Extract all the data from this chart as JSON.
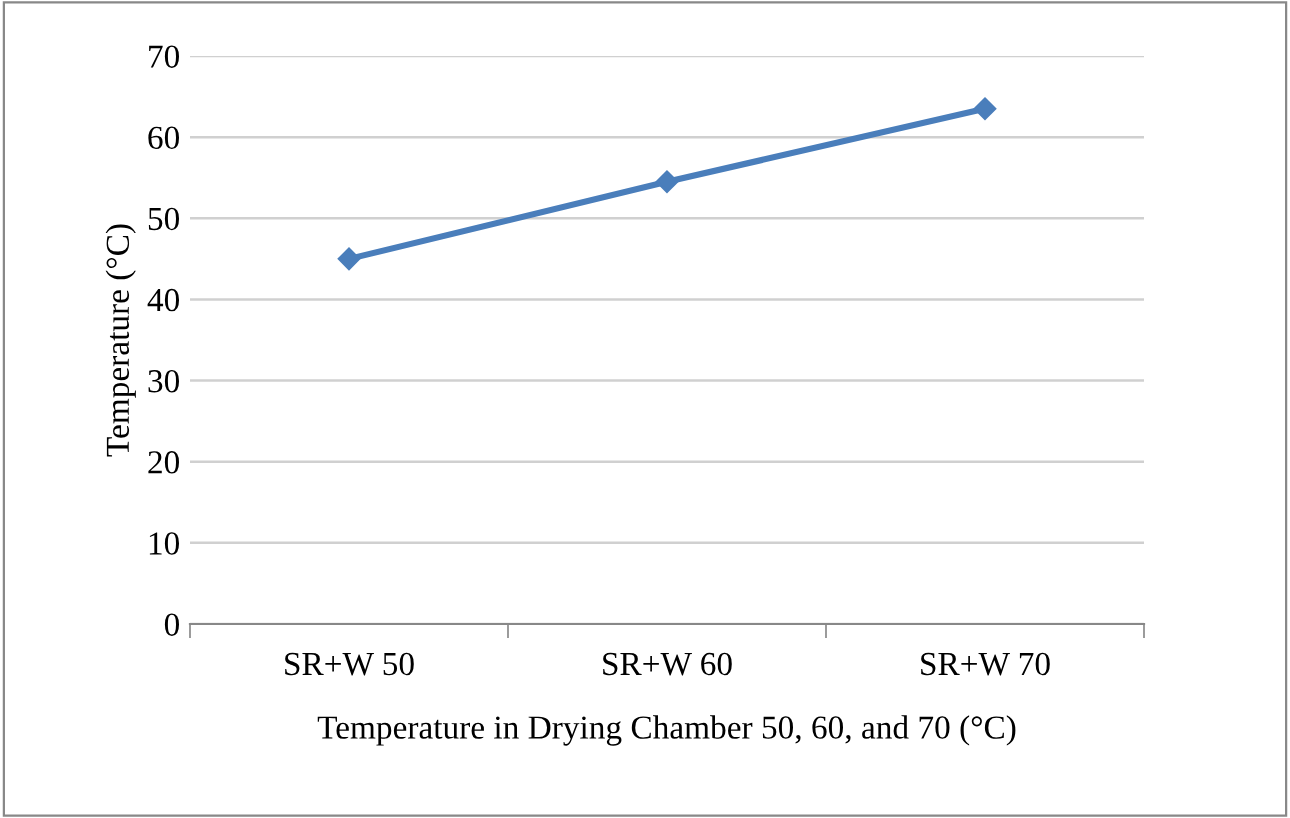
{
  "chart_data": {
    "type": "line",
    "xlabel": "Temperature in Drying Chamber 50, 60, and 70 (°C)",
    "ylabel": "Temperature (°C)",
    "categories": [
      "SR+W 50",
      "SR+W 60",
      "SR+W 70"
    ],
    "series": [
      {
        "color": "#4a7ebb",
        "values": [
          45,
          54.5,
          63.5
        ]
      }
    ],
    "ylim": [
      0,
      70
    ],
    "yticks": [
      0,
      10,
      20,
      30,
      40,
      50,
      60,
      70
    ],
    "grid": "y",
    "marker": "diamond",
    "line_style": "solid",
    "legend": false
  }
}
